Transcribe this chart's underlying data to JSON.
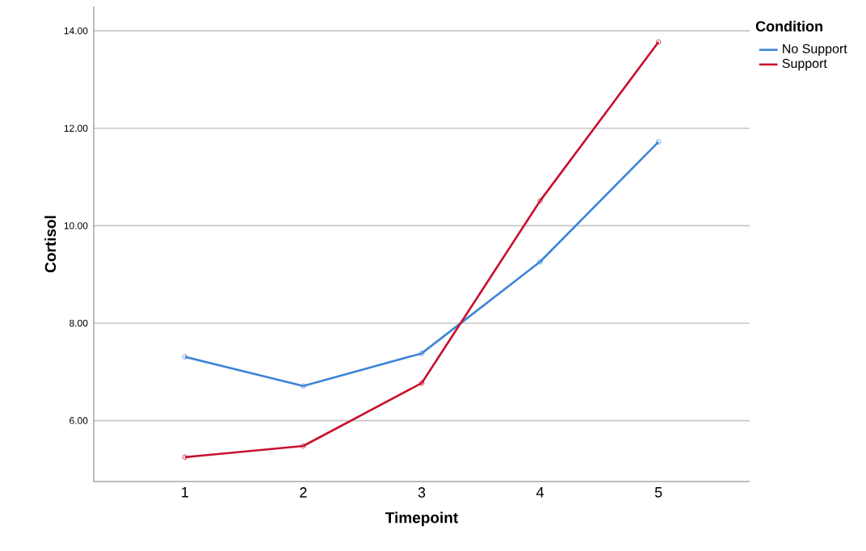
{
  "chart_data": {
    "type": "line",
    "xlabel": "Timepoint",
    "ylabel": "Cortisol",
    "legend_title": "Condition",
    "x": [
      1,
      2,
      3,
      4,
      5
    ],
    "series": [
      {
        "name": "No Support",
        "color": "#3d85d8",
        "values": [
          7.31,
          6.71,
          7.38,
          9.26,
          11.72
        ]
      },
      {
        "name": "Support",
        "color": "#c8102e",
        "values": [
          5.25,
          5.48,
          6.77,
          10.51,
          13.77
        ]
      }
    ],
    "xlim": [
      0.23,
      5.77
    ],
    "xticks": [
      1,
      2,
      3,
      4,
      5
    ],
    "ylim": [
      4.75,
      14.5
    ],
    "yticks": [
      {
        "value": 6,
        "label": "6.00"
      },
      {
        "value": 8,
        "label": "8.00"
      },
      {
        "value": 10,
        "label": "10.00"
      },
      {
        "value": 12,
        "label": "12.00"
      },
      {
        "value": 14,
        "label": "14.00"
      }
    ],
    "grid": "y",
    "legend": "top right",
    "marker": "circle",
    "line_style": "solid"
  }
}
